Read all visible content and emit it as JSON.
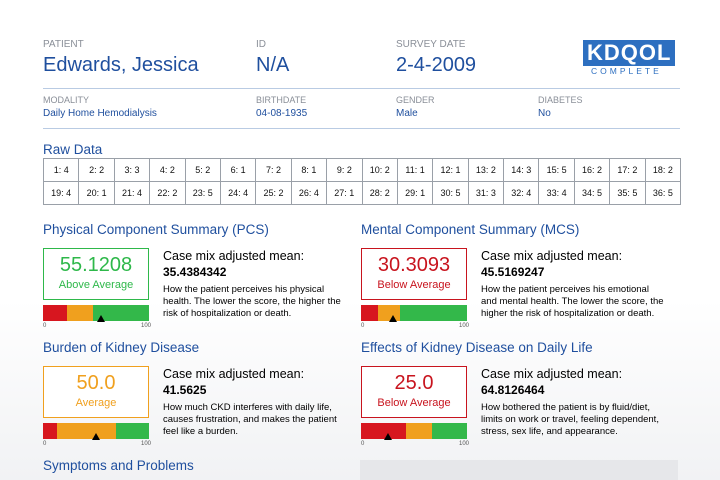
{
  "header": {
    "fields": [
      {
        "label": "PATIENT",
        "value": "Edwards, Jessica"
      },
      {
        "label": "ID",
        "value": "N/A"
      },
      {
        "label": "SURVEY DATE",
        "value": "2-4-2009"
      }
    ],
    "logo": {
      "title": "KDQOL",
      "subtitle": "COMPLETE"
    },
    "details": [
      {
        "label": "MODALITY",
        "value": "Daily Home Hemodialysis"
      },
      {
        "label": "BIRTHDATE",
        "value": "04-08-1935"
      },
      {
        "label": "GENDER",
        "value": "Male"
      },
      {
        "label": "DIABETES",
        "value": "No"
      }
    ]
  },
  "raw_data": {
    "title": "Raw Data",
    "rows": [
      [
        "1: 4",
        "2: 2",
        "3: 3",
        "4: 2",
        "5: 2",
        "6: 1",
        "7: 2",
        "8: 1",
        "9: 2",
        "10: 2",
        "11: 1",
        "12: 1",
        "13: 2",
        "14: 3",
        "15: 5",
        "16: 2",
        "17: 2",
        "18: 2"
      ],
      [
        "19: 4",
        "20: 1",
        "21: 4",
        "22: 2",
        "23: 5",
        "24: 4",
        "25: 2",
        "26: 4",
        "27: 1",
        "28: 2",
        "29: 1",
        "30: 5",
        "31: 3",
        "32: 4",
        "33: 4",
        "34: 5",
        "35: 5",
        "36: 5"
      ]
    ]
  },
  "sections": [
    {
      "title": "Physical Component Summary (PCS)",
      "score": "55.1208",
      "rating": "Above Average",
      "color": "#2eb84a",
      "mean_label": "Case mix adjusted mean:",
      "mean": "35.4384342",
      "description": "How the patient perceives his physical health. The lower the score, the higher the risk of hospitalization or death.",
      "gauge_min": "0",
      "gauge_max": "100"
    },
    {
      "title": "Mental Component Summary (MCS)",
      "score": "30.3093",
      "rating": "Below Average",
      "color": "#c8141e",
      "mean_label": "Case mix adjusted mean:",
      "mean": "45.5169247",
      "description": "How the patient perceives his emotional and mental health. The lower the score, the higher the risk of hospitalization or death.",
      "gauge_min": "0",
      "gauge_max": "100"
    },
    {
      "title": "Burden of Kidney Disease",
      "score": "50.0",
      "rating": "Average",
      "color": "#f0a01e",
      "mean_label": "Case mix adjusted mean:",
      "mean": "41.5625",
      "description": "How much CKD interferes with daily life, causes frustration, and makes the patient feel like a burden.",
      "gauge_min": "0",
      "gauge_max": "100"
    },
    {
      "title": "Effects of Kidney Disease on Daily Life",
      "score": "25.0",
      "rating": "Below Average",
      "color": "#c8141e",
      "mean_label": "Case mix adjusted mean:",
      "mean": "64.8126464",
      "description": "How bothered the patient is by fluid/diet, limits on work or travel, feeling dependent, stress, sex life, and appearance.",
      "gauge_min": "0",
      "gauge_max": "100"
    }
  ],
  "footer_heading": "Symptoms and Problems"
}
